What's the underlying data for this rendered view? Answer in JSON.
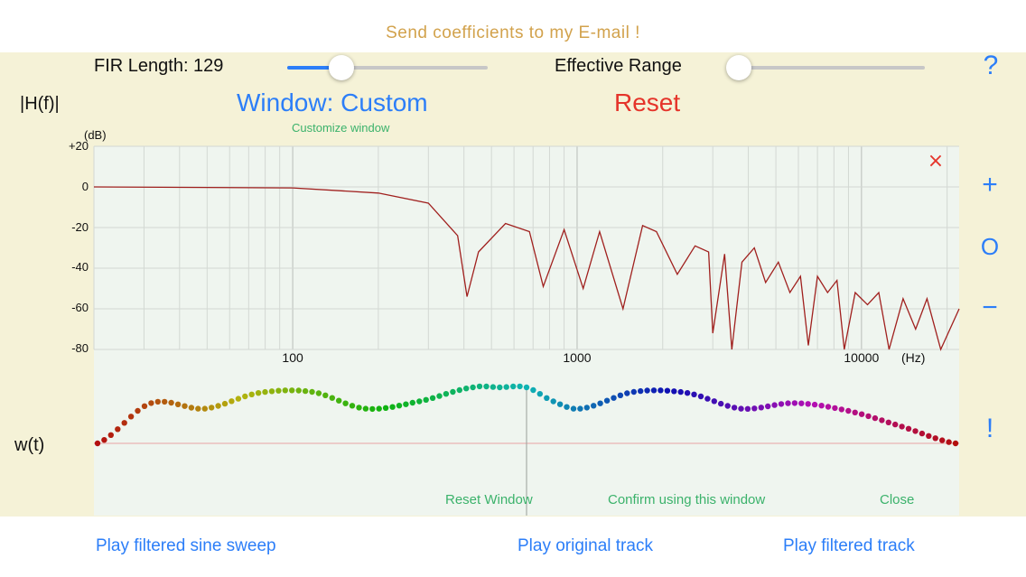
{
  "header": {
    "email_link": "Send coefficients to my E-mail !"
  },
  "controls": {
    "fir_length_label": "FIR Length: 129",
    "fir_slider_value": 0.27,
    "effective_range_label": "Effective Range",
    "effective_range_value": 0.0,
    "help_label": "?"
  },
  "plot": {
    "hf_label": "|H(f)|",
    "window_button": "Window: Custom",
    "reset_button": "Reset",
    "customize_link": "Customize window",
    "db_unit": "(dB)",
    "y_ticks": [
      "+20",
      "0",
      "-20",
      "-40",
      "-60",
      "-80"
    ],
    "x_ticks": [
      "100",
      "1000",
      "10000"
    ],
    "hz_unit": "(Hz)",
    "close_x": "×"
  },
  "zoom": {
    "plus": "+",
    "reset": "O",
    "minus": "−"
  },
  "window_editor": {
    "wt_label": "w(t)",
    "exclaim": "!",
    "reset_window": "Reset Window",
    "confirm": "Confirm using this window",
    "close": "Close"
  },
  "footer": {
    "play_sweep": "Play filtered sine sweep",
    "play_original": "Play original track",
    "play_filtered": "Play filtered track"
  },
  "colors": {
    "accent": "#2c7ef8",
    "reset": "#e5342a",
    "email": "#d2a24c",
    "green_link": "#3bb26b",
    "curve": "#a0201e",
    "panel_bg": "#f5f2d7",
    "plot_bg": "#eff5ef"
  },
  "chart_data": [
    {
      "type": "line",
      "title": "",
      "ylabel": "|H(f)| (dB)",
      "xlabel": "(Hz)",
      "x_scale": "log",
      "xlim": [
        20,
        22050
      ],
      "ylim": [
        -80,
        20
      ],
      "series": [
        {
          "x": [
            20,
            100,
            200,
            300,
            380,
            410,
            450,
            560,
            680,
            760,
            900,
            1050,
            1200,
            1450,
            1700,
            1900,
            2250,
            2600,
            2900,
            3000,
            3300,
            3500,
            3800,
            4200,
            4600,
            5100,
            5600,
            6100,
            6500,
            7000,
            7600,
            8200,
            8700,
            9500,
            10500,
            11500,
            12500,
            14000,
            15500,
            17000,
            19000,
            22050
          ],
          "y": [
            0,
            -0.5,
            -3,
            -8,
            -24,
            -54,
            -32,
            -18,
            -22,
            -49,
            -21,
            -50,
            -22,
            -60,
            -19,
            -22,
            -43,
            -29,
            -32,
            -72,
            -33,
            -80,
            -37,
            -30,
            -47,
            -37,
            -52,
            -44,
            -78,
            -44,
            -52,
            -46,
            -80,
            -52,
            -58,
            -52,
            -80,
            -55,
            -70,
            -55,
            -80,
            -60
          ]
        }
      ]
    },
    {
      "type": "scatter",
      "title": "",
      "ylabel": "w(t)",
      "x": [
        0,
        8,
        16,
        24,
        32,
        40,
        48,
        56,
        60,
        64,
        68,
        72,
        80,
        88,
        96,
        104,
        112,
        120,
        128
      ],
      "y": [
        0.0,
        0.72,
        0.62,
        0.9,
        0.92,
        0.62,
        0.75,
        1.0,
        1.0,
        1.0,
        0.75,
        0.62,
        0.92,
        0.9,
        0.62,
        0.72,
        0.58,
        0.3,
        0.0
      ],
      "ylim": [
        0,
        1
      ]
    }
  ]
}
